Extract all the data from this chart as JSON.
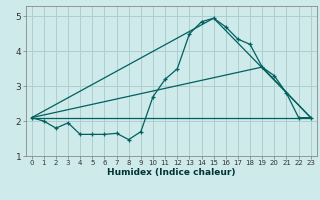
{
  "title": "",
  "xlabel": "Humidex (Indice chaleur)",
  "ylabel": "",
  "bg_color": "#ceeaea",
  "grid_color": "#b0cece",
  "line_color": "#006060",
  "xlim": [
    -0.5,
    23.5
  ],
  "ylim": [
    1.0,
    5.3
  ],
  "yticks": [
    1,
    2,
    3,
    4,
    5
  ],
  "xticks": [
    0,
    1,
    2,
    3,
    4,
    5,
    6,
    7,
    8,
    9,
    10,
    11,
    12,
    13,
    14,
    15,
    16,
    17,
    18,
    19,
    20,
    21,
    22,
    23
  ],
  "series1_x": [
    0,
    1,
    2,
    3,
    4,
    5,
    6,
    7,
    8,
    9,
    10,
    11,
    12,
    13,
    14,
    15,
    16,
    17,
    18,
    19,
    20,
    21,
    22,
    23
  ],
  "series1_y": [
    2.1,
    2.0,
    1.8,
    1.95,
    1.62,
    1.62,
    1.62,
    1.65,
    1.47,
    1.7,
    2.7,
    3.2,
    3.5,
    4.5,
    4.85,
    4.95,
    4.7,
    4.35,
    4.2,
    3.55,
    3.3,
    2.8,
    2.1,
    2.1
  ],
  "line1_x": [
    0,
    23
  ],
  "line1_y": [
    2.1,
    2.1
  ],
  "line2_x": [
    0,
    15,
    23
  ],
  "line2_y": [
    2.1,
    4.95,
    2.1
  ],
  "line3_x": [
    0,
    19,
    23
  ],
  "line3_y": [
    2.1,
    3.55,
    2.1
  ]
}
